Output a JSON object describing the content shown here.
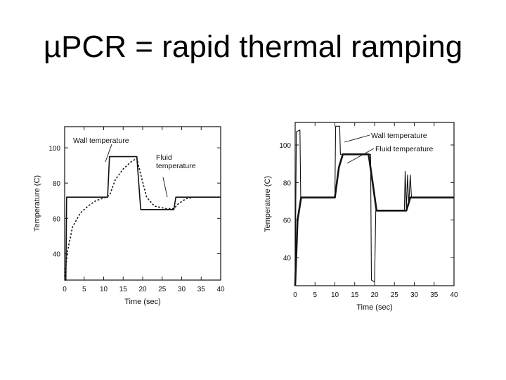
{
  "slide": {
    "title": "µPCR = rapid thermal ramping"
  },
  "colors": {
    "background": "#ffffff",
    "ink": "#111111",
    "frame": "#222222"
  },
  "chart_data": [
    {
      "type": "line",
      "xlabel": "Time (sec)",
      "ylabel": "Temperature (C)",
      "xlim": [
        0,
        40
      ],
      "ylim": [
        25,
        112
      ],
      "xticks": [
        0,
        5,
        10,
        15,
        20,
        25,
        30,
        35,
        40
      ],
      "yticks": [
        40,
        60,
        80,
        100
      ],
      "grid": false,
      "annotations": [
        "Wall temperature",
        "Fluid temperature"
      ],
      "series": [
        {
          "name": "Wall temperature",
          "style": "solid",
          "points": [
            [
              0,
              25
            ],
            [
              0.3,
              25
            ],
            [
              0.5,
              72
            ],
            [
              10,
              72
            ],
            [
              11,
              72
            ],
            [
              11.5,
              95
            ],
            [
              18.5,
              95
            ],
            [
              19.5,
              65
            ],
            [
              28,
              65
            ],
            [
              28.5,
              72
            ],
            [
              40,
              72
            ]
          ]
        },
        {
          "name": "Fluid temperature",
          "style": "dotted",
          "points": [
            [
              0,
              27
            ],
            [
              0.8,
              42
            ],
            [
              2,
              55
            ],
            [
              4,
              63
            ],
            [
              6,
              67
            ],
            [
              8,
              70
            ],
            [
              10,
              71.5
            ],
            [
              11.5,
              73
            ],
            [
              13,
              82
            ],
            [
              15,
              88
            ],
            [
              17,
              92
            ],
            [
              18.5,
              94
            ],
            [
              19.5,
              85
            ],
            [
              21,
              72
            ],
            [
              23,
              67
            ],
            [
              26,
              65.5
            ],
            [
              28,
              65.5
            ],
            [
              29,
              68
            ],
            [
              31,
              71
            ],
            [
              33,
              72
            ],
            [
              40,
              72
            ]
          ]
        }
      ]
    },
    {
      "type": "line",
      "xlabel": "Time (sec)",
      "ylabel": "Temperature (C)",
      "xlim": [
        0,
        40
      ],
      "ylim": [
        25,
        112
      ],
      "xticks": [
        0,
        5,
        10,
        15,
        20,
        25,
        30,
        35,
        40
      ],
      "yticks": [
        40,
        60,
        80,
        100
      ],
      "grid": false,
      "annotations": [
        "Wall temperature",
        "Fluid temperature"
      ],
      "series": [
        {
          "name": "Wall temperature",
          "style": "thin",
          "points": [
            [
              0,
              25
            ],
            [
              0.3,
              107
            ],
            [
              1.2,
              108
            ],
            [
              1.4,
              72
            ],
            [
              10,
              72
            ],
            [
              10.2,
              110
            ],
            [
              11.2,
              110
            ],
            [
              11.4,
              95
            ],
            [
              19,
              95
            ],
            [
              19.2,
              28
            ],
            [
              20,
              27
            ],
            [
              20.3,
              65
            ],
            [
              27.5,
              65
            ],
            [
              27.7,
              86
            ],
            [
              28,
              66
            ],
            [
              28.3,
              84
            ],
            [
              28.6,
              68
            ],
            [
              29,
              84
            ],
            [
              29.3,
              72
            ],
            [
              40,
              72
            ]
          ]
        },
        {
          "name": "Fluid temperature",
          "style": "bold",
          "points": [
            [
              0,
              25
            ],
            [
              0.6,
              60
            ],
            [
              1.5,
              72
            ],
            [
              10,
              72
            ],
            [
              11,
              88
            ],
            [
              12,
              95
            ],
            [
              18.5,
              95
            ],
            [
              19.5,
              80
            ],
            [
              20.5,
              65
            ],
            [
              28,
              65
            ],
            [
              29,
              72
            ],
            [
              40,
              72
            ]
          ]
        }
      ]
    }
  ]
}
